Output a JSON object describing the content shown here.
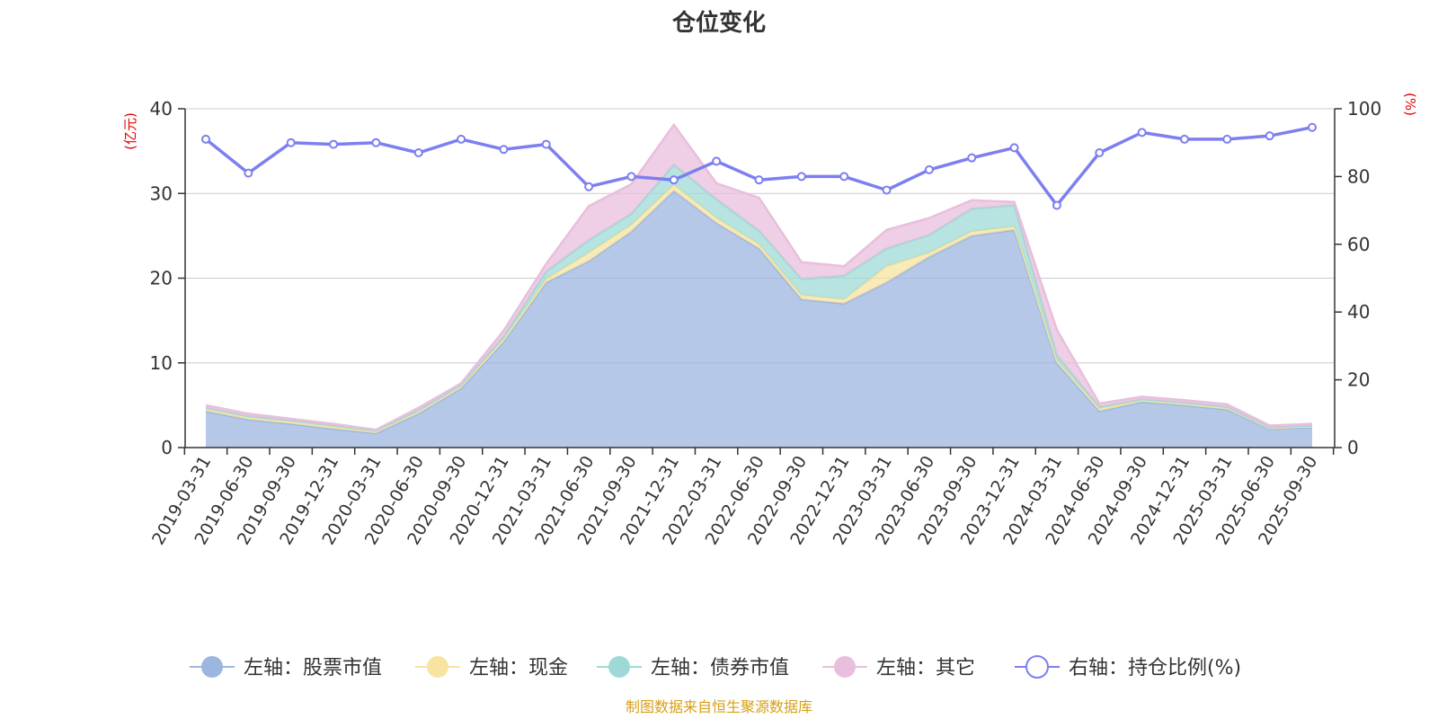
{
  "chart_data": {
    "type": "area",
    "title": "仓位变化",
    "y_left_unit": "(亿元)",
    "y_right_unit": "(%)",
    "y_left_lim": [
      0,
      40
    ],
    "y_left_ticks": [
      "0",
      "10",
      "20",
      "30",
      "40"
    ],
    "y_right_lim": [
      0,
      100
    ],
    "y_right_ticks": [
      "0",
      "20",
      "40",
      "60",
      "80",
      "100"
    ],
    "categories": [
      "2019-03-31",
      "2019-06-30",
      "2019-09-30",
      "2019-12-31",
      "2020-03-31",
      "2020-06-30",
      "2020-09-30",
      "2020-12-31",
      "2021-03-31",
      "2021-06-30",
      "2021-09-30",
      "2021-12-31",
      "2022-03-31",
      "2022-06-30",
      "2022-09-30",
      "2022-12-31",
      "2023-03-31",
      "2023-06-30",
      "2023-09-30",
      "2023-12-31",
      "2024-03-31",
      "2024-06-30",
      "2024-09-30",
      "2024-12-31",
      "2025-03-31",
      "2025-06-30",
      "2025-09-30"
    ],
    "series": [
      {
        "name": "左轴：股票市值",
        "axis": "left",
        "color": "#9db6e0",
        "values": [
          4.3,
          3.3,
          2.8,
          2.2,
          1.7,
          4.0,
          7.0,
          12.5,
          19.5,
          22.0,
          25.5,
          30.3,
          26.5,
          23.5,
          17.5,
          17.0,
          19.5,
          22.5,
          25.0,
          25.7,
          10.0,
          4.3,
          5.4,
          5.0,
          4.5,
          2.2,
          2.4
        ]
      },
      {
        "name": "左轴：现金",
        "axis": "left",
        "color": "#f7e4a0",
        "values": [
          0.3,
          0.3,
          0.3,
          0.3,
          0.2,
          0.3,
          0.3,
          0.3,
          0.4,
          1.0,
          0.8,
          0.7,
          0.6,
          0.5,
          0.5,
          0.5,
          1.9,
          0.5,
          0.5,
          0.4,
          0.3,
          0.3,
          0.2,
          0.2,
          0.2,
          0.1,
          0.1
        ]
      },
      {
        "name": "左轴：债券市值",
        "axis": "left",
        "color": "#9fd9d6",
        "values": [
          0.1,
          0.1,
          0.1,
          0.1,
          0.1,
          0.1,
          0.1,
          0.3,
          0.9,
          1.5,
          1.3,
          2.4,
          2.2,
          1.6,
          1.9,
          2.8,
          2.1,
          2.1,
          2.7,
          2.5,
          0.6,
          0.2,
          0.1,
          0.1,
          0.1,
          0.1,
          0.1
        ]
      },
      {
        "name": "左轴：其它",
        "axis": "left",
        "color": "#e8bfdc",
        "values": [
          0.3,
          0.3,
          0.2,
          0.2,
          0.1,
          0.3,
          0.2,
          0.7,
          0.9,
          4.0,
          3.5,
          4.7,
          1.9,
          3.9,
          2.0,
          1.1,
          2.2,
          2.0,
          1.0,
          0.4,
          3.0,
          0.4,
          0.3,
          0.3,
          0.3,
          0.2,
          0.2
        ]
      },
      {
        "name": "右轴：持仓比例(%)",
        "axis": "right",
        "color": "#7d7ff0",
        "values": [
          91,
          81,
          90,
          89.5,
          90,
          87,
          91,
          88,
          89.5,
          77,
          80,
          79,
          84.5,
          79,
          80,
          80,
          76,
          82,
          85.5,
          88.5,
          71.5,
          87,
          93,
          91,
          91,
          92,
          94.5
        ]
      }
    ],
    "legend_position": "bottom",
    "grid": true
  },
  "source_note": "制图数据来自恒生聚源数据库"
}
